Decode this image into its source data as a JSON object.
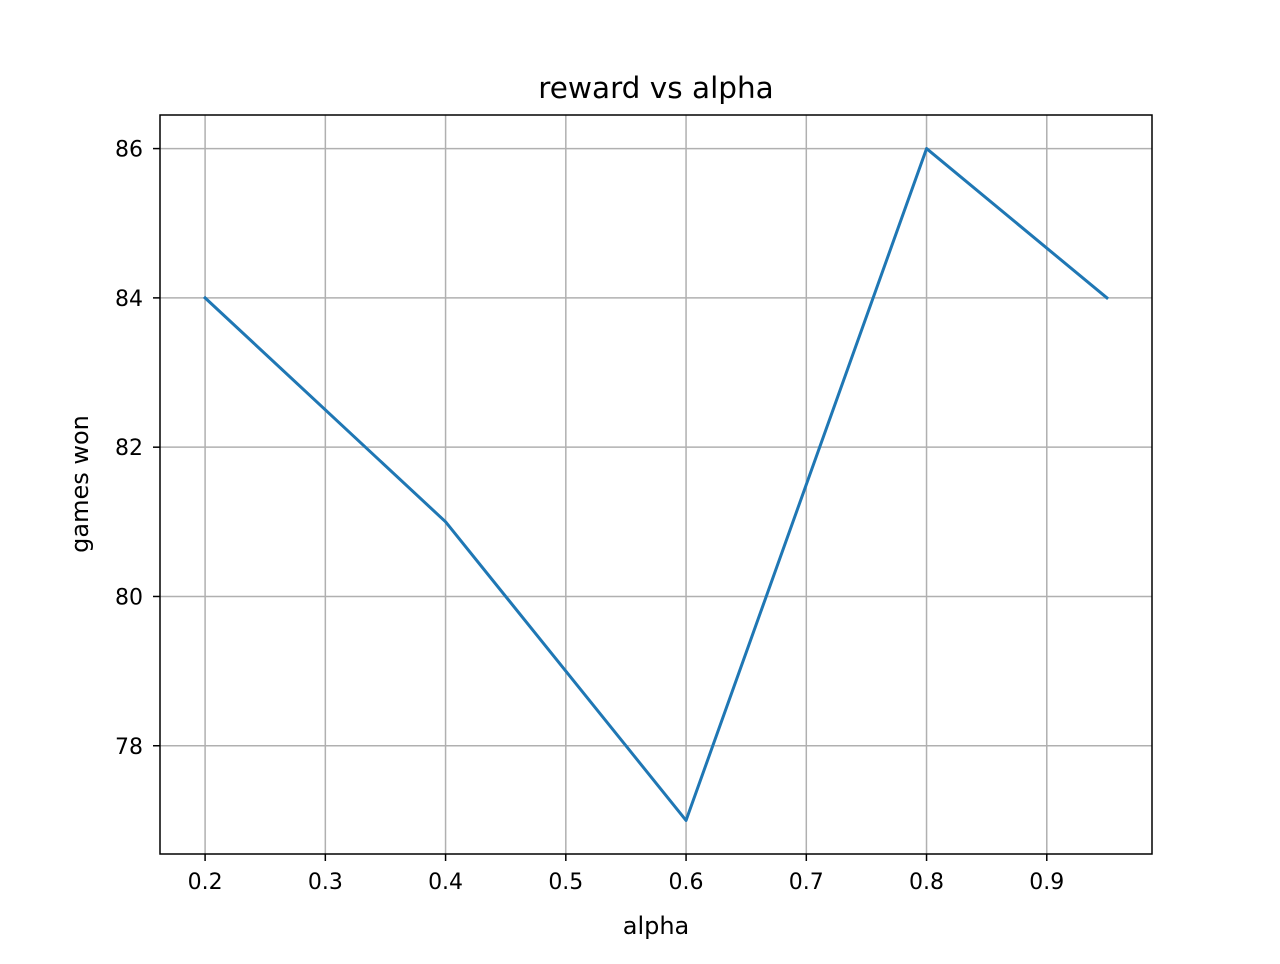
{
  "chart_data": {
    "type": "line",
    "title": "reward vs alpha",
    "xlabel": "alpha",
    "ylabel": "games won",
    "x": [
      0.2,
      0.4,
      0.6,
      0.8,
      0.95
    ],
    "series": [
      {
        "values": [
          84,
          81,
          77,
          86,
          84
        ],
        "color": "#1f77b4"
      }
    ],
    "xlim": [
      0.1625,
      0.9875
    ],
    "ylim": [
      76.55,
      86.45
    ],
    "xticks": [
      0.2,
      0.3,
      0.4,
      0.5,
      0.6,
      0.7,
      0.8,
      0.9
    ],
    "xtick_labels": [
      "0.2",
      "0.3",
      "0.4",
      "0.5",
      "0.6",
      "0.7",
      "0.8",
      "0.9"
    ],
    "yticks": [
      78,
      80,
      82,
      84,
      86
    ],
    "ytick_labels": [
      "78",
      "80",
      "82",
      "84",
      "86"
    ],
    "grid": true,
    "legend": false,
    "colors": {
      "grid": "#b0b0b0",
      "axes": "#000000",
      "background": "#ffffff"
    }
  }
}
